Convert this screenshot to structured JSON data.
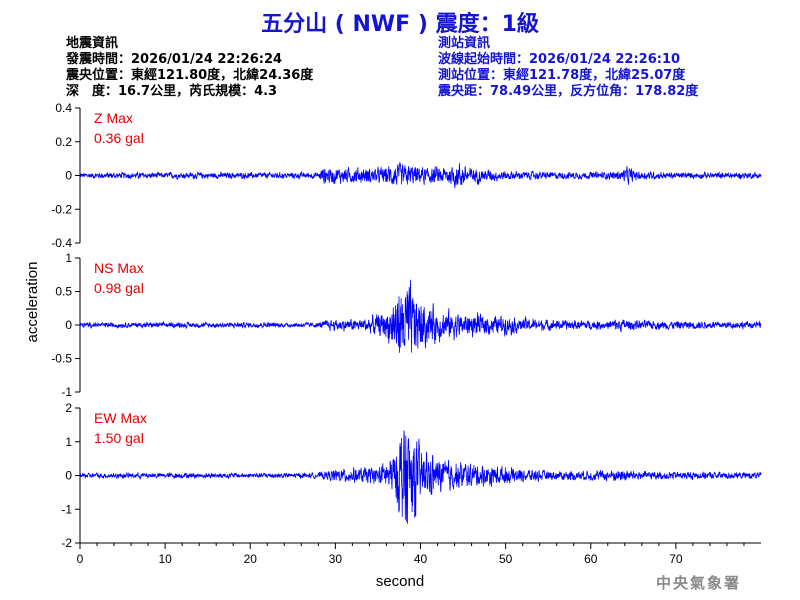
{
  "title": "五分山 ( NWF ) 震度：1級",
  "event_info": {
    "heading": "地震資訊",
    "origin_time": "發震時間：2026/01/24 22:26:24",
    "epicenter": "震央位置：東經121.80度，北緯24.36度",
    "depth_magnitude": "深　度：16.7公里，芮氏規模：4.3"
  },
  "station_info": {
    "heading": "測站資訊",
    "wave_start_time": "波線起始時間：2026/01/24 22:26:10",
    "station_location": "測站位置：東經121.78度，北緯25.07度",
    "distance_azimuth": "震央距：78.49公里，反方位角：178.82度"
  },
  "credit": "中央氣象署",
  "colors": {
    "trace": "#0000ff",
    "title": "#1414d2",
    "max_label": "#e60000",
    "axis": "#000000"
  },
  "chart_data": {
    "type": "line",
    "xlabel": "second",
    "ylabel": "acceleration",
    "xlim": [
      0,
      80
    ],
    "x_ticks": [
      0,
      10,
      20,
      30,
      40,
      50,
      60,
      70
    ],
    "grid": false,
    "panels": [
      {
        "component": "Z",
        "max_label": "Z Max",
        "max_value": "0.36 gal",
        "ylim": [
          -0.4,
          0.4
        ],
        "y_ticks": [
          -0.4,
          -0.2,
          0,
          0.2,
          0.4
        ],
        "y_tick_labels": [
          "-0.4",
          "-0.2",
          "0",
          "0.2",
          "0.4"
        ],
        "envelope": [
          [
            0,
            0.06
          ],
          [
            2,
            0.07
          ],
          [
            10,
            0.07
          ],
          [
            20,
            0.07
          ],
          [
            28,
            0.07
          ],
          [
            28.5,
            0.2
          ],
          [
            30,
            0.18
          ],
          [
            33,
            0.18
          ],
          [
            35,
            0.18
          ],
          [
            37,
            0.26
          ],
          [
            38,
            0.27
          ],
          [
            40,
            0.2
          ],
          [
            43,
            0.2
          ],
          [
            44.5,
            0.3
          ],
          [
            46,
            0.18
          ],
          [
            50,
            0.1
          ],
          [
            56,
            0.08
          ],
          [
            62,
            0.08
          ],
          [
            63.5,
            0.12
          ],
          [
            64.5,
            0.2
          ],
          [
            65.5,
            0.1
          ],
          [
            70,
            0.07
          ],
          [
            80,
            0.07
          ]
        ]
      },
      {
        "component": "NS",
        "max_label": "NS Max",
        "max_value": "0.98 gal",
        "ylim": [
          -1,
          1
        ],
        "y_ticks": [
          -1,
          -0.5,
          0,
          0.5,
          1
        ],
        "y_tick_labels": [
          "-1",
          "-0.5",
          "0",
          "0.5",
          "1"
        ],
        "envelope": [
          [
            0,
            0.06
          ],
          [
            28,
            0.06
          ],
          [
            29,
            0.12
          ],
          [
            33,
            0.14
          ],
          [
            36,
            0.3
          ],
          [
            37.5,
            0.85
          ],
          [
            38.5,
            0.95
          ],
          [
            40,
            0.6
          ],
          [
            42,
            0.35
          ],
          [
            45,
            0.28
          ],
          [
            50,
            0.2
          ],
          [
            55,
            0.12
          ],
          [
            62,
            0.1
          ],
          [
            63,
            0.15
          ],
          [
            66,
            0.1
          ],
          [
            80,
            0.08
          ]
        ]
      },
      {
        "component": "EW",
        "max_label": "EW Max",
        "max_value": "1.50 gal",
        "ylim": [
          -2,
          2
        ],
        "y_ticks": [
          -2,
          -1,
          0,
          1,
          2
        ],
        "y_tick_labels": [
          "-2",
          "-1",
          "0",
          "1",
          "2"
        ],
        "envelope": [
          [
            0,
            0.06
          ],
          [
            28,
            0.06
          ],
          [
            30,
            0.15
          ],
          [
            35,
            0.2
          ],
          [
            37,
            0.5
          ],
          [
            38,
            1.4
          ],
          [
            39,
            1.1
          ],
          [
            40,
            0.6
          ],
          [
            42,
            0.4
          ],
          [
            45,
            0.3
          ],
          [
            50,
            0.2
          ],
          [
            55,
            0.1
          ],
          [
            62,
            0.12
          ],
          [
            64,
            0.15
          ],
          [
            66,
            0.1
          ],
          [
            80,
            0.07
          ]
        ]
      }
    ]
  }
}
